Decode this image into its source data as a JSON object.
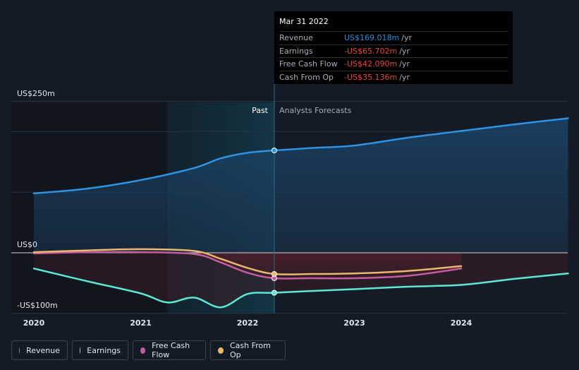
{
  "chart_data": {
    "type": "line",
    "title": "",
    "xlabel": "",
    "ylabel": "",
    "x_ticks": [
      "2020",
      "2021",
      "2022",
      "2023",
      "2024"
    ],
    "y_labels": [
      "US$250m",
      "US$0",
      "-US$100m"
    ],
    "ylim": [
      -100,
      250
    ],
    "past_label": "Past",
    "forecast_label": "Analysts Forecasts",
    "series": [
      {
        "name": "Revenue",
        "color": "#2e93e3",
        "points": [
          [
            2020.0,
            98
          ],
          [
            2020.5,
            106
          ],
          [
            2021.0,
            120
          ],
          [
            2021.5,
            140
          ],
          [
            2021.75,
            156
          ],
          [
            2022.0,
            165
          ],
          [
            2022.25,
            169
          ],
          [
            2022.6,
            173
          ],
          [
            2023.0,
            177
          ],
          [
            2023.5,
            190
          ],
          [
            2024.0,
            201
          ],
          [
            2024.5,
            212
          ],
          [
            2025.0,
            222
          ]
        ]
      },
      {
        "name": "Earnings",
        "color": "#5ee8d3",
        "points": [
          [
            2020.0,
            -26
          ],
          [
            2020.5,
            -47
          ],
          [
            2021.0,
            -67
          ],
          [
            2021.25,
            -82
          ],
          [
            2021.5,
            -74
          ],
          [
            2021.75,
            -90
          ],
          [
            2022.0,
            -68
          ],
          [
            2022.25,
            -66
          ],
          [
            2022.6,
            -63
          ],
          [
            2023.0,
            -60
          ],
          [
            2023.5,
            -56
          ],
          [
            2024.0,
            -53
          ],
          [
            2024.5,
            -43
          ],
          [
            2025.0,
            -34
          ]
        ]
      },
      {
        "name": "Free Cash Flow",
        "color": "#c75ba0",
        "points": [
          [
            2020.0,
            -1
          ],
          [
            2020.5,
            1
          ],
          [
            2021.0,
            1
          ],
          [
            2021.5,
            -2
          ],
          [
            2021.75,
            -16
          ],
          [
            2022.0,
            -33
          ],
          [
            2022.25,
            -42
          ],
          [
            2022.6,
            -42
          ],
          [
            2023.0,
            -42
          ],
          [
            2023.5,
            -38
          ],
          [
            2024.0,
            -26
          ]
        ]
      },
      {
        "name": "Cash From Op",
        "color": "#e9b86c",
        "points": [
          [
            2020.0,
            1
          ],
          [
            2020.5,
            4
          ],
          [
            2021.0,
            6
          ],
          [
            2021.5,
            3
          ],
          [
            2021.75,
            -10
          ],
          [
            2022.0,
            -25
          ],
          [
            2022.25,
            -35
          ],
          [
            2022.6,
            -35
          ],
          [
            2023.0,
            -34
          ],
          [
            2023.5,
            -30
          ],
          [
            2024.0,
            -22
          ]
        ]
      }
    ]
  },
  "tooltip": {
    "date": "Mar 31 2022",
    "rows": [
      {
        "label": "Revenue",
        "value": "US$169.018m",
        "unit": "/yr"
      },
      {
        "label": "Earnings",
        "value": "-US$65.702m",
        "unit": "/yr"
      },
      {
        "label": "Free Cash Flow",
        "value": "-US$42.090m",
        "unit": "/yr"
      },
      {
        "label": "Cash From Op",
        "value": "-US$35.136m",
        "unit": "/yr"
      }
    ]
  },
  "legend": [
    {
      "label": "Revenue",
      "color": "#2e93e3"
    },
    {
      "label": "Earnings",
      "color": "#5ee8d3"
    },
    {
      "label": "Free Cash Flow",
      "color": "#c75ba0"
    },
    {
      "label": "Cash From Op",
      "color": "#e9b86c"
    }
  ]
}
